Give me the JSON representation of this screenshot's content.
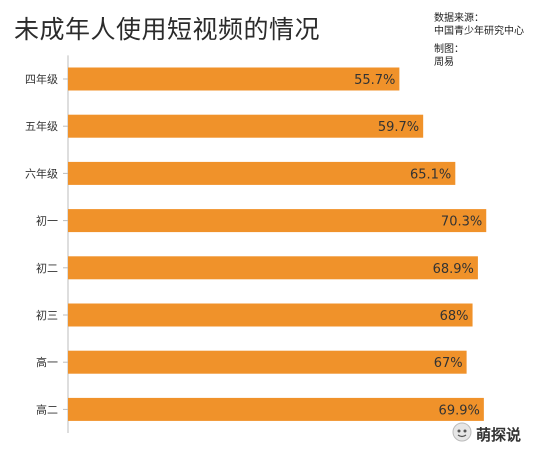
{
  "chart_data": {
    "type": "bar",
    "orientation": "horizontal",
    "title": "未成年人使用短视频的情况",
    "categories": [
      "四年级",
      "五年级",
      "六年级",
      "初一",
      "初二",
      "初三",
      "高一",
      "高二"
    ],
    "values": [
      55.7,
      59.7,
      65.1,
      70.3,
      68.9,
      68,
      67,
      69.9
    ],
    "data_labels": [
      "55.7%",
      "59.7%",
      "65.1%",
      "70.3%",
      "68.9%",
      "68%",
      "67%",
      "69.9%"
    ],
    "xlim": [
      0,
      79
    ],
    "bar_color": "#f0922a",
    "grid": false,
    "legend": "none"
  },
  "source": {
    "line1": "数据来源：",
    "line2": "中国青少年研究中心",
    "line3": "制图：",
    "line4": "周易"
  },
  "watermark": {
    "text": "萌探说"
  }
}
